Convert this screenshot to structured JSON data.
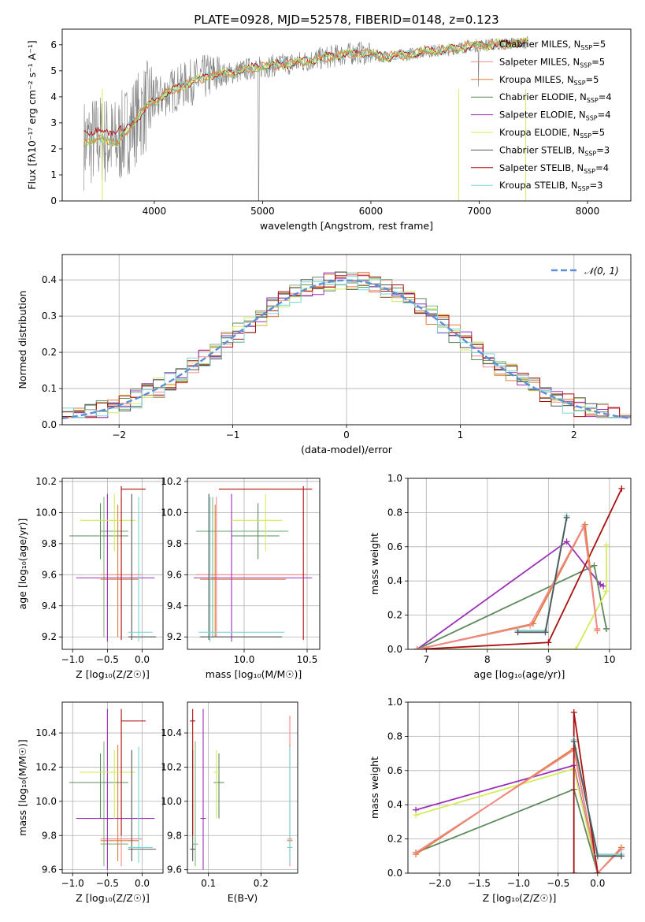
{
  "figure_title": "PLATE=0928, MJD=52578, FIBERID=0148, z=0.123",
  "colors": {
    "Chabrier MILES": "#7fb77f",
    "Salpeter MILES": "#f08a8a",
    "Kroupa MILES": "#e07b39",
    "Chabrier ELODIE": "#5e8a5e",
    "Salpeter ELODIE": "#9b30b8",
    "Kroupa ELODIE": "#d4ec5a",
    "Chabrier STELIB": "#555555",
    "Salpeter STELIB": "#aa1010",
    "Kroupa STELIB": "#78d6d6",
    "data": "#7f7f7f",
    "normal": "#5b8fd6"
  },
  "chart_data": [
    {
      "id": "spectrum",
      "type": "line",
      "title": "",
      "xlabel": "wavelength [Angstrom, rest frame]",
      "ylabel": "Flux [fλ10⁻¹⁷ erg cm⁻² s⁻¹ A⁻¹]",
      "xlim": [
        3150,
        8400
      ],
      "ylim": [
        0,
        6.6
      ],
      "xticks": [
        4000,
        5000,
        6000,
        7000,
        8000
      ],
      "yticks": [
        0,
        1,
        2,
        3,
        4,
        5,
        6
      ],
      "legend_position": "top-right",
      "legend": [
        {
          "label": "Chabrier MILES, N",
          "sub": "SSP",
          "tail": "=5",
          "model": "Chabrier MILES"
        },
        {
          "label": "Salpeter MILES, N",
          "sub": "SSP",
          "tail": "=5",
          "model": "Salpeter MILES"
        },
        {
          "label": "Kroupa MILES, N",
          "sub": "SSP",
          "tail": "=5",
          "model": "Kroupa MILES"
        },
        {
          "label": "Chabrier ELODIE, N",
          "sub": "SSP",
          "tail": "=4",
          "model": "Chabrier ELODIE"
        },
        {
          "label": "Salpeter ELODIE, N",
          "sub": "SSP",
          "tail": "=4",
          "model": "Salpeter ELODIE"
        },
        {
          "label": "Kroupa ELODIE, N",
          "sub": "SSP",
          "tail": "=5",
          "model": "Kroupa ELODIE"
        },
        {
          "label": "Chabrier STELIB, N",
          "sub": "SSP",
          "tail": "=3",
          "model": "Chabrier STELIB"
        },
        {
          "label": "Salpeter STELIB, N",
          "sub": "SSP",
          "tail": "=4",
          "model": "Salpeter STELIB"
        },
        {
          "label": "Kroupa STELIB, N",
          "sub": "SSP",
          "tail": "=3",
          "model": "Kroupa STELIB"
        }
      ],
      "continuum": {
        "x": [
          3350,
          3500,
          3650,
          3800,
          3950,
          4100,
          4300,
          4500,
          4700,
          4900,
          5100,
          5300,
          5500,
          5700,
          5900,
          6100,
          6300,
          6500,
          6700,
          6900,
          7100,
          7300,
          7450
        ],
        "y": [
          2.2,
          2.4,
          2.2,
          3.0,
          3.7,
          4.1,
          4.5,
          4.8,
          4.9,
          5.1,
          5.2,
          5.3,
          5.45,
          5.6,
          5.7,
          5.55,
          5.6,
          5.75,
          5.8,
          5.95,
          6.0,
          6.05,
          6.1
        ]
      }
    },
    {
      "id": "residuals",
      "type": "line",
      "title": "",
      "xlabel": "(data-model)/error",
      "ylabel": "Normed distribution",
      "xlim": [
        -2.5,
        2.5
      ],
      "ylim": [
        0,
        0.47
      ],
      "xticks": [
        -2,
        -1,
        0,
        1,
        2
      ],
      "yticks": [
        0.0,
        0.1,
        0.2,
        0.3,
        0.4
      ],
      "legend_position": "top-right",
      "legend_normal": "𝒩(0, 1)"
    },
    {
      "id": "age_vs_z",
      "type": "scatter",
      "xlabel": "Z [log₁₀(Z/Z☉)]",
      "ylabel": "age  [log₁₀(age/yr)]",
      "xlim": [
        -1.15,
        0.3
      ],
      "ylim": [
        9.12,
        10.22
      ],
      "xticks": [
        -1.0,
        -0.5,
        0.0
      ],
      "yticks": [
        9.2,
        9.4,
        9.6,
        9.8,
        10.0,
        10.2
      ]
    },
    {
      "id": "age_vs_mass",
      "type": "scatter",
      "xlabel": "mass [log₁₀(M/M☉)]",
      "ylabel": "",
      "xlim": [
        9.55,
        10.6
      ],
      "ylim": [
        9.12,
        10.22
      ],
      "xticks": [
        10.0,
        10.5
      ],
      "yticks": [
        9.2,
        9.4,
        9.6,
        9.8,
        10.0,
        10.2
      ]
    },
    {
      "id": "weight_vs_age",
      "type": "line",
      "xlabel": "age  [log₁₀(age/yr)]",
      "ylabel": "mass weight",
      "xlim": [
        6.7,
        10.35
      ],
      "ylim": [
        0,
        1.0
      ],
      "xticks": [
        7,
        8,
        9,
        10
      ],
      "yticks": [
        0.0,
        0.2,
        0.4,
        0.6,
        0.8,
        1.0
      ]
    },
    {
      "id": "mass_vs_z",
      "type": "scatter",
      "xlabel": "Z [log₁₀(Z/Z☉)]",
      "ylabel": "mass [log₁₀(M/M☉)]",
      "xlim": [
        -1.15,
        0.3
      ],
      "ylim": [
        9.58,
        10.58
      ],
      "xticks": [
        -1.0,
        -0.5,
        0.0
      ],
      "yticks": [
        9.6,
        9.8,
        10.0,
        10.2,
        10.4
      ]
    },
    {
      "id": "mass_vs_ebv",
      "type": "scatter",
      "xlabel": "E(B-V)",
      "ylabel": "",
      "xlim": [
        0.06,
        0.27
      ],
      "ylim": [
        9.58,
        10.58
      ],
      "xticks": [
        0.1,
        0.2
      ],
      "yticks": [
        9.6,
        9.8,
        10.0,
        10.2,
        10.4
      ]
    },
    {
      "id": "weight_vs_z",
      "type": "line",
      "xlabel": "Z [log₁₀(Z/Z☉)]",
      "ylabel": "mass weight",
      "xlim": [
        -2.4,
        0.42
      ],
      "ylim": [
        0,
        1.0
      ],
      "xticks": [
        -2.0,
        -1.5,
        -1.0,
        -0.5,
        0.0
      ],
      "yticks": [
        0.0,
        0.2,
        0.4,
        0.6,
        0.8,
        1.0
      ]
    }
  ],
  "model_fits": [
    {
      "model": "Chabrier MILES",
      "age": 9.88,
      "age_lo": 9.2,
      "age_hi": 10.1,
      "z": -0.55,
      "z_lo": -0.6,
      "z_hi": -0.2,
      "mass": 9.75,
      "mass_lo": 9.62,
      "mass_hi": 10.35,
      "ebv": 0.075,
      "ebv_lo": 0.07,
      "ebv_hi": 0.08
    },
    {
      "model": "Salpeter MILES",
      "age": 9.6,
      "age_lo": 9.2,
      "age_hi": 10.1,
      "z": -0.3,
      "z_lo": -0.6,
      "z_hi": 0.0,
      "mass": 9.78,
      "mass_lo": 9.62,
      "mass_hi": 10.5,
      "ebv": 0.255,
      "ebv_lo": 0.25,
      "ebv_hi": 0.26
    },
    {
      "model": "Kroupa MILES",
      "age": 9.57,
      "age_lo": 9.2,
      "age_hi": 10.05,
      "z": -0.35,
      "z_lo": -0.6,
      "z_hi": -0.05,
      "mass": 9.77,
      "mass_lo": 9.65,
      "mass_hi": 10.33,
      "ebv": 0.255,
      "ebv_lo": 0.25,
      "ebv_hi": 0.26
    },
    {
      "model": "Chabrier ELODIE",
      "age": 9.85,
      "age_lo": 9.7,
      "age_hi": 10.06,
      "z": -0.6,
      "z_lo": -1.05,
      "z_hi": -0.2,
      "mass": 10.11,
      "mass_lo": 9.9,
      "mass_hi": 10.28,
      "ebv": 0.12,
      "ebv_lo": 0.11,
      "ebv_hi": 0.13
    },
    {
      "model": "Salpeter ELODIE",
      "age": 9.58,
      "age_lo": 9.17,
      "age_hi": 10.12,
      "z": -0.5,
      "z_lo": -0.95,
      "z_hi": 0.18,
      "mass": 9.9,
      "mass_lo": 9.6,
      "mass_hi": 10.54,
      "ebv": 0.09,
      "ebv_lo": 0.085,
      "ebv_hi": 0.095
    },
    {
      "model": "Kroupa ELODIE",
      "age": 9.95,
      "age_lo": 9.75,
      "age_hi": 10.12,
      "z": -0.4,
      "z_lo": -0.9,
      "z_hi": -0.1,
      "mass": 10.17,
      "mass_lo": 9.9,
      "mass_hi": 10.3,
      "ebv": 0.115,
      "ebv_lo": 0.11,
      "ebv_hi": 0.12
    },
    {
      "model": "Chabrier STELIB",
      "age": 9.2,
      "age_lo": 9.18,
      "age_hi": 10.12,
      "z": -0.15,
      "z_lo": -0.2,
      "z_hi": 0.2,
      "mass": 9.72,
      "mass_lo": 9.65,
      "mass_hi": 10.3,
      "ebv": 0.07,
      "ebv_lo": 0.065,
      "ebv_hi": 0.075
    },
    {
      "model": "Salpeter STELIB",
      "age": 10.15,
      "age_lo": 9.18,
      "age_hi": 10.17,
      "z": -0.3,
      "z_lo": -0.3,
      "z_hi": 0.05,
      "mass": 10.47,
      "mass_lo": 9.8,
      "mass_hi": 10.54,
      "ebv": 0.07,
      "ebv_lo": 0.065,
      "ebv_hi": 0.075
    },
    {
      "model": "Kroupa STELIB",
      "age": 9.23,
      "age_lo": 9.17,
      "age_hi": 10.1,
      "z": -0.05,
      "z_lo": -0.2,
      "z_hi": 0.15,
      "mass": 9.73,
      "mass_lo": 9.64,
      "mass_hi": 10.32,
      "ebv": 0.255,
      "ebv_lo": 0.25,
      "ebv_hi": 0.26
    }
  ],
  "weights_by_age": [
    {
      "model": "Salpeter ELODIE",
      "age": [
        6.85,
        9.3,
        9.85,
        9.9
      ],
      "w": [
        0.0,
        0.63,
        0.38,
        0.37
      ]
    },
    {
      "model": "Chabrier ELODIE",
      "age": [
        6.85,
        9.75,
        9.95,
        9.95
      ],
      "w": [
        0.0,
        0.49,
        0.12,
        0.12
      ]
    },
    {
      "model": "Kroupa ELODIE",
      "age": [
        6.85,
        9.45,
        9.95,
        9.95
      ],
      "w": [
        0.0,
        0.0,
        0.34,
        0.61
      ]
    },
    {
      "model": "Salpeter STELIB",
      "age": [
        6.85,
        9.0,
        10.2
      ],
      "w": [
        0.0,
        0.04,
        0.94
      ]
    },
    {
      "model": "Kroupa MILES",
      "age": [
        6.85,
        8.75,
        9.6,
        9.8
      ],
      "w": [
        0.0,
        0.15,
        0.73,
        0.11
      ]
    },
    {
      "model": "Salpeter MILES",
      "age": [
        6.85,
        8.7,
        9.58,
        9.8
      ],
      "w": [
        0.0,
        0.14,
        0.72,
        0.12
      ]
    },
    {
      "model": "Kroupa STELIB",
      "age": [
        8.5,
        8.95,
        9.3
      ],
      "w": [
        0.11,
        0.11,
        0.78
      ]
    },
    {
      "model": "Chabrier STELIB",
      "age": [
        8.5,
        8.95,
        9.3
      ],
      "w": [
        0.1,
        0.1,
        0.77
      ]
    }
  ],
  "weights_by_z": [
    {
      "model": "Salpeter ELODIE",
      "z": [
        -2.3,
        -0.3,
        0.0
      ],
      "w": [
        0.37,
        0.63,
        0.0
      ]
    },
    {
      "model": "Kroupa ELODIE",
      "z": [
        -2.3,
        -0.3,
        0.0
      ],
      "w": [
        0.34,
        0.61,
        0.0
      ]
    },
    {
      "model": "Chabrier ELODIE",
      "z": [
        -2.3,
        -0.3,
        0.0
      ],
      "w": [
        0.12,
        0.49,
        0.0
      ]
    },
    {
      "model": "Kroupa MILES",
      "z": [
        -2.3,
        -0.3,
        0.0,
        0.3
      ],
      "w": [
        0.11,
        0.73,
        0.0,
        0.15
      ]
    },
    {
      "model": "Salpeter MILES",
      "z": [
        -2.3,
        -0.3,
        0.0,
        0.3
      ],
      "w": [
        0.12,
        0.72,
        0.0,
        0.14
      ]
    },
    {
      "model": "Salpeter STELIB",
      "z": [
        -0.3,
        -0.3,
        0.0
      ],
      "w": [
        0.0,
        0.94,
        0.0
      ]
    },
    {
      "model": "Kroupa STELIB",
      "z": [
        -0.3,
        0.0,
        0.3
      ],
      "w": [
        0.78,
        0.11,
        0.11
      ]
    },
    {
      "model": "Chabrier STELIB",
      "z": [
        -0.3,
        0.0,
        0.3
      ],
      "w": [
        0.77,
        0.1,
        0.1
      ]
    }
  ]
}
